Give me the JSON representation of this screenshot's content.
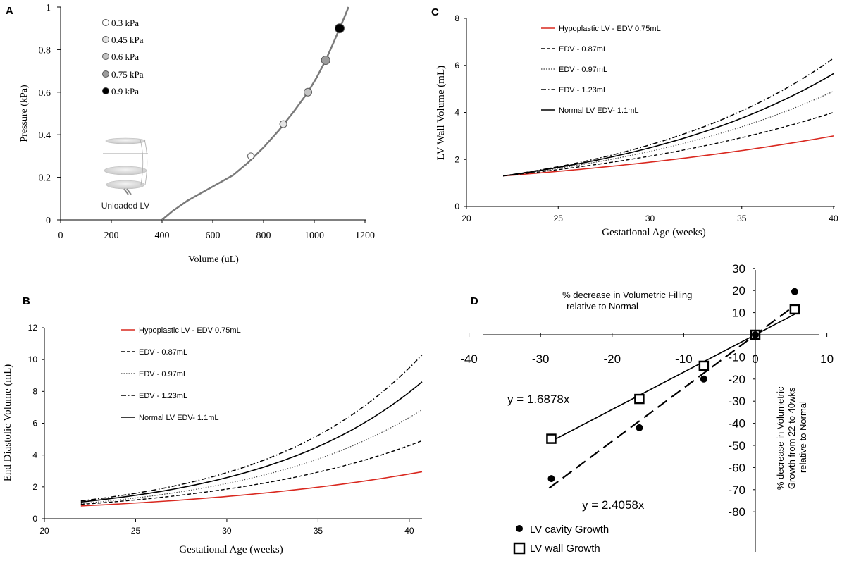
{
  "colors": {
    "axis": "#000000",
    "curve_gray": "#7a7a7a",
    "red": "#d9281f"
  },
  "chart_data": [
    {
      "panel": "A",
      "type": "line",
      "xlabel": "Volume (uL)",
      "ylabel": "Pressure (kPa)",
      "xlim": [
        0,
        1200
      ],
      "ylim": [
        0,
        1
      ],
      "xticks": [
        "0",
        "200",
        "400",
        "600",
        "800",
        "1000",
        "1200"
      ],
      "yticks": [
        "0",
        "0.2",
        "0.4",
        "0.6",
        "0.8",
        "1"
      ],
      "curve": {
        "x": [
          400,
          440,
          500,
          560,
          620,
          680,
          740,
          800,
          860,
          920,
          975,
          1010,
          1045,
          1075,
          1100,
          1118,
          1135
        ],
        "y": [
          0,
          0.04,
          0.09,
          0.13,
          0.17,
          0.21,
          0.27,
          0.34,
          0.42,
          0.51,
          0.6,
          0.67,
          0.75,
          0.83,
          0.9,
          0.95,
          1.0
        ]
      },
      "markers": [
        {
          "label": "0.3 kPa",
          "x": 750,
          "y": 0.3,
          "fill": "#ffffff"
        },
        {
          "label": "0.45 kPa",
          "x": 878,
          "y": 0.45,
          "fill": "#e4e4e4"
        },
        {
          "label": "0.6 kPa",
          "x": 975,
          "y": 0.6,
          "fill": "#c4c4c4"
        },
        {
          "label": "0.75 kPa",
          "x": 1045,
          "y": 0.75,
          "fill": "#9c9c9c"
        },
        {
          "label": "0.9 kPa",
          "x": 1100,
          "y": 0.9,
          "fill": "#000000"
        }
      ],
      "inset_label": "Unloaded LV"
    },
    {
      "panel": "B",
      "type": "line",
      "xlabel": "Gestational Age (weeks)",
      "ylabel": "End Diastolic Volume (mL)",
      "xlim": [
        20,
        40.7
      ],
      "ylim": [
        0,
        12
      ],
      "xticks": [
        "20",
        "25",
        "30",
        "35",
        "40"
      ],
      "yticks": [
        "0",
        "2",
        "4",
        "6",
        "8",
        "10",
        "12"
      ],
      "series": [
        {
          "name": "Hypoplastic LV - EDV 0.75mL",
          "style": "red",
          "start": 22,
          "y0": 0.8,
          "y1": 2.95
        },
        {
          "name": "EDV - 0.87mL",
          "style": "dash",
          "start": 22,
          "y0": 0.9,
          "y1": 4.9
        },
        {
          "name": "EDV - 0.97mL",
          "style": "dot",
          "start": 22,
          "y0": 0.95,
          "y1": 6.85
        },
        {
          "name": "EDV - 1.23mL",
          "style": "dashdot",
          "start": 22,
          "y0": 1.12,
          "y1": 10.3
        },
        {
          "name": "Normal LV EDV- 1.1mL",
          "style": "solid",
          "start": 22,
          "y0": 1.05,
          "y1": 8.6
        }
      ]
    },
    {
      "panel": "C",
      "type": "line",
      "xlabel": "Gestational Age (weeks)",
      "ylabel": "LV Wall Volume (mL)",
      "xlim": [
        20,
        40
      ],
      "ylim": [
        0,
        8
      ],
      "xticks": [
        "20",
        "25",
        "30",
        "35",
        "40"
      ],
      "yticks": [
        "0",
        "2",
        "4",
        "6",
        "8"
      ],
      "series": [
        {
          "name": "Hypoplastic LV - EDV 0.75mL",
          "style": "red",
          "start": 22,
          "y0": 1.3,
          "y1": 3.0
        },
        {
          "name": "EDV - 0.87mL",
          "style": "dash",
          "start": 22,
          "y0": 1.3,
          "y1": 4.0
        },
        {
          "name": "EDV - 0.97mL",
          "style": "dot",
          "start": 22,
          "y0": 1.3,
          "y1": 4.9
        },
        {
          "name": "EDV - 1.23mL",
          "style": "dashdot",
          "start": 22,
          "y0": 1.3,
          "y1": 6.3
        },
        {
          "name": "Normal LV EDV- 1.1mL",
          "style": "solid",
          "start": 22,
          "y0": 1.3,
          "y1": 5.65
        }
      ]
    },
    {
      "panel": "D",
      "type": "scatter",
      "xlabel": "% decrease in Volumetric Filling relative to Normal",
      "ylabel": "% decrease in Volumetric Growth from 22 to 40wks relative to Normal",
      "xlim": [
        -40,
        10
      ],
      "ylim": [
        -80,
        30
      ],
      "xticks": [
        "-40",
        "-30",
        "-20",
        "-10",
        "0",
        "10"
      ],
      "yticks": [
        "30",
        "20",
        "10",
        "0",
        "-10",
        "-20",
        "-30",
        "-40",
        "-50",
        "-60",
        "-70",
        "-80"
      ],
      "series": [
        {
          "name": "LV cavity Growth",
          "marker": "filled-circle",
          "x": [
            -28.5,
            -16.2,
            -7.2,
            0,
            5.5
          ],
          "y": [
            -65,
            -42,
            -20,
            0,
            19.5
          ],
          "fit": {
            "label": "y = 2.4058x",
            "slope": 2.4058,
            "style": "dashed",
            "x_from": -28.8,
            "x_to": 5.2
          }
        },
        {
          "name": "LV wall Growth",
          "marker": "open-square",
          "x": [
            -28.5,
            -16.2,
            -7.2,
            0,
            5.5
          ],
          "y": [
            -47,
            -29,
            -14,
            0,
            11.5
          ],
          "fit": {
            "label": "y = 1.6878x",
            "slope": 1.6878,
            "style": "solid",
            "x_from": -28.8,
            "x_to": 5.5
          }
        }
      ]
    }
  ],
  "panel_letters": [
    "A",
    "B",
    "C",
    "D"
  ]
}
